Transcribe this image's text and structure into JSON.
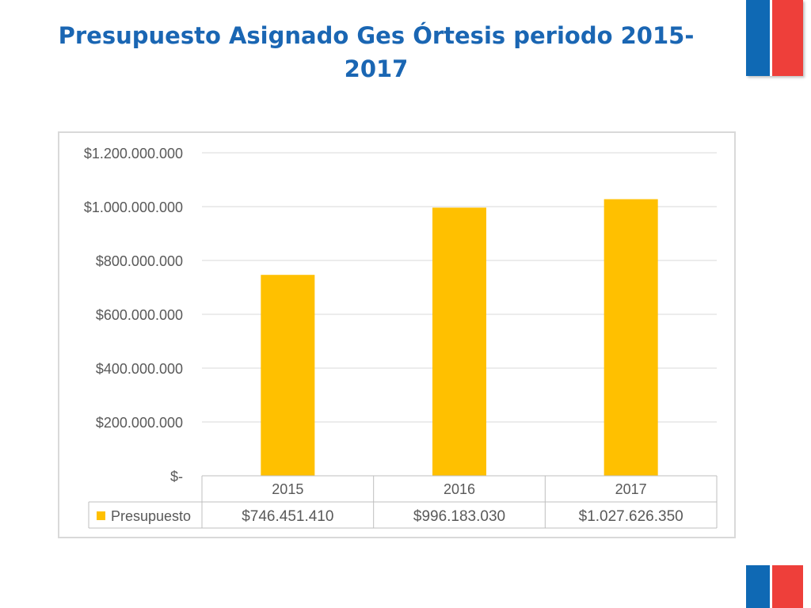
{
  "slide": {
    "title": "Presupuesto Asignado Ges Órtesis periodo 2015-2017"
  },
  "colors": {
    "title": "#1a66b3",
    "bar": "#ffc000",
    "flag_blue": "#0f69b4",
    "flag_red": "#ee3f3a"
  },
  "chart_data": {
    "type": "bar",
    "categories": [
      "2015",
      "2016",
      "2017"
    ],
    "series": [
      {
        "name": "Presupuesto",
        "values": [
          746451410,
          996183030,
          1027626350
        ],
        "value_labels": [
          "$746.451.410",
          "$996.183.030",
          "$1.027.626.350"
        ],
        "color": "#ffc000"
      }
    ],
    "ylim": [
      0,
      1200000000
    ],
    "yticks": [
      0,
      200000000,
      400000000,
      600000000,
      800000000,
      1000000000,
      1200000000
    ],
    "ytick_labels": [
      "$-",
      "$200.000.000",
      "$400.000.000",
      "$600.000.000",
      "$800.000.000",
      "$1.000.000.000",
      "$1.200.000.000"
    ],
    "grid": true,
    "data_table": true
  }
}
